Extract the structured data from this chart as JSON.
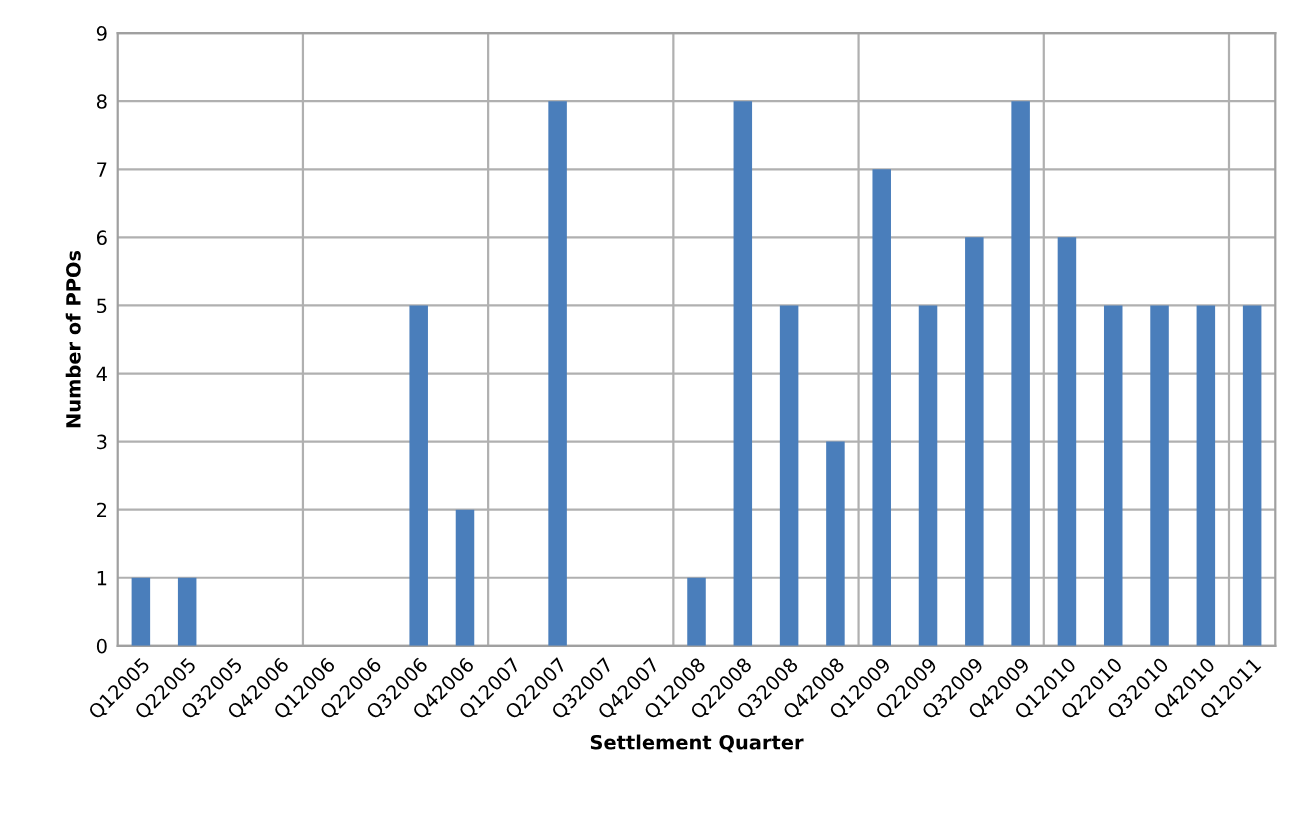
{
  "chart_data": {
    "type": "bar",
    "xlabel": "Settlement Quarter",
    "ylabel": "Number of PPOs",
    "categories": [
      "Q12005",
      "Q22005",
      "Q32005",
      "Q42006",
      "Q12006",
      "Q22006",
      "Q32006",
      "Q42006",
      "Q12007",
      "Q22007",
      "Q32007",
      "Q42007",
      "Q12008",
      "Q22008",
      "Q32008",
      "Q42008",
      "Q12009",
      "Q22009",
      "Q32009",
      "Q42009",
      "Q12010",
      "Q22010",
      "Q32010",
      "Q42010",
      "Q12011"
    ],
    "values": [
      1,
      1,
      0,
      0,
      0,
      0,
      5,
      2,
      0,
      8,
      0,
      0,
      1,
      8,
      5,
      3,
      7,
      5,
      6,
      8,
      6,
      5,
      5,
      5,
      5
    ],
    "color": "#4a7ebb",
    "ylim": [
      0,
      9
    ],
    "yticks": [
      0,
      1,
      2,
      3,
      4,
      5,
      6,
      7,
      8,
      9
    ],
    "grid": true
  }
}
